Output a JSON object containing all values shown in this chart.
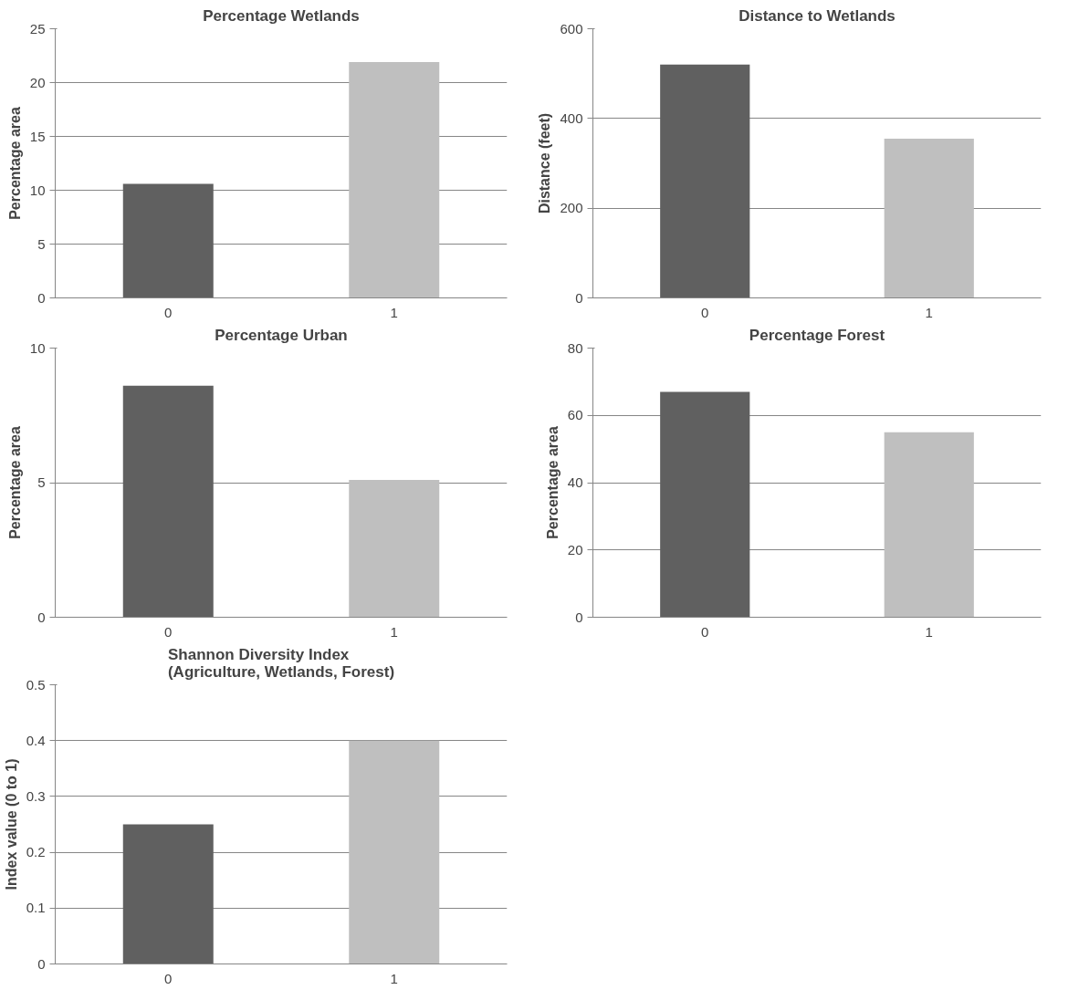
{
  "chart_data": [
    {
      "type": "bar",
      "title": "Percentage Wetlands",
      "ylabel": "Percentage area",
      "categories": [
        "0",
        "1"
      ],
      "values": [
        10.6,
        21.9
      ],
      "colors": [
        "#606060",
        "#bfbfbf"
      ],
      "ylim": [
        0,
        25
      ],
      "yticks": [
        0,
        5,
        10,
        15,
        20,
        25
      ],
      "grid": "y"
    },
    {
      "type": "bar",
      "title": "Distance to Wetlands",
      "ylabel": "Distance (feet)",
      "categories": [
        "0",
        "1"
      ],
      "values": [
        520,
        355
      ],
      "colors": [
        "#606060",
        "#bfbfbf"
      ],
      "ylim": [
        0,
        600
      ],
      "yticks": [
        0,
        200,
        400,
        600
      ],
      "grid": "y"
    },
    {
      "type": "bar",
      "title": "Percentage Urban",
      "ylabel": "Percentage area",
      "categories": [
        "0",
        "1"
      ],
      "values": [
        8.6,
        5.1
      ],
      "colors": [
        "#606060",
        "#bfbfbf"
      ],
      "ylim": [
        0,
        10
      ],
      "yticks": [
        0,
        5,
        10
      ],
      "grid": "y"
    },
    {
      "type": "bar",
      "title": "Percentage Forest",
      "ylabel": "Percentage area",
      "categories": [
        "0",
        "1"
      ],
      "values": [
        67,
        55
      ],
      "colors": [
        "#606060",
        "#bfbfbf"
      ],
      "ylim": [
        0,
        80
      ],
      "yticks": [
        0,
        20,
        40,
        60,
        80
      ],
      "grid": "y"
    },
    {
      "type": "bar",
      "title": "Shannon  Diversity Index\n(Agriculture, Wetlands, Forest)",
      "ylabel": "Index value (0 to 1)",
      "categories": [
        "0",
        "1"
      ],
      "values": [
        0.25,
        0.4
      ],
      "colors": [
        "#606060",
        "#bfbfbf"
      ],
      "ylim": [
        0,
        0.5
      ],
      "yticks": [
        0,
        0.1,
        0.2,
        0.3,
        0.4,
        0.5
      ],
      "grid": "y"
    }
  ]
}
